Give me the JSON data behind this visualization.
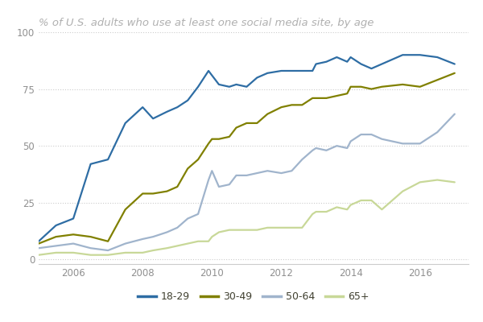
{
  "title": "% of U.S. adults who use at least one social media site, by age",
  "background_color": "#ffffff",
  "grid_color": "#cccccc",
  "ylim": [
    -2,
    100
  ],
  "yticks": [
    0,
    25,
    50,
    75,
    100
  ],
  "xlim": [
    2005.0,
    2017.4
  ],
  "xticks": [
    2006,
    2008,
    2010,
    2012,
    2014,
    2016
  ],
  "series": {
    "18-29": {
      "color": "#2e6da4",
      "x": [
        2005.0,
        2005.5,
        2006.0,
        2006.5,
        2007.0,
        2007.5,
        2008.0,
        2008.3,
        2008.7,
        2009.0,
        2009.3,
        2009.6,
        2009.9,
        2010.0,
        2010.2,
        2010.5,
        2010.7,
        2011.0,
        2011.3,
        2011.6,
        2012.0,
        2012.3,
        2012.6,
        2012.9,
        2013.0,
        2013.3,
        2013.6,
        2013.9,
        2014.0,
        2014.3,
        2014.6,
        2014.9,
        2015.5,
        2016.0,
        2016.5,
        2017.0
      ],
      "y": [
        8,
        15,
        18,
        42,
        44,
        60,
        67,
        62,
        65,
        67,
        70,
        76,
        83,
        81,
        77,
        76,
        77,
        76,
        80,
        82,
        83,
        83,
        83,
        83,
        86,
        87,
        89,
        87,
        89,
        86,
        84,
        86,
        90,
        90,
        89,
        86
      ]
    },
    "30-49": {
      "color": "#808000",
      "x": [
        2005.0,
        2005.5,
        2006.0,
        2006.5,
        2007.0,
        2007.5,
        2008.0,
        2008.3,
        2008.7,
        2009.0,
        2009.3,
        2009.6,
        2009.9,
        2010.0,
        2010.2,
        2010.5,
        2010.7,
        2011.0,
        2011.3,
        2011.6,
        2012.0,
        2012.3,
        2012.6,
        2012.9,
        2013.0,
        2013.3,
        2013.6,
        2013.9,
        2014.0,
        2014.3,
        2014.6,
        2014.9,
        2015.5,
        2016.0,
        2016.5,
        2017.0
      ],
      "y": [
        7,
        10,
        11,
        10,
        8,
        22,
        29,
        29,
        30,
        32,
        40,
        44,
        51,
        53,
        53,
        54,
        58,
        60,
        60,
        64,
        67,
        68,
        68,
        71,
        71,
        71,
        72,
        73,
        76,
        76,
        75,
        76,
        77,
        76,
        79,
        82
      ]
    },
    "50-64": {
      "color": "#a0b4cc",
      "x": [
        2005.0,
        2005.5,
        2006.0,
        2006.5,
        2007.0,
        2007.5,
        2008.0,
        2008.3,
        2008.7,
        2009.0,
        2009.3,
        2009.6,
        2009.9,
        2010.0,
        2010.2,
        2010.5,
        2010.7,
        2011.0,
        2011.3,
        2011.6,
        2012.0,
        2012.3,
        2012.6,
        2012.9,
        2013.0,
        2013.3,
        2013.6,
        2013.9,
        2014.0,
        2014.3,
        2014.6,
        2014.9,
        2015.5,
        2016.0,
        2016.5,
        2017.0
      ],
      "y": [
        5,
        6,
        7,
        5,
        4,
        7,
        9,
        10,
        12,
        14,
        18,
        20,
        35,
        39,
        32,
        33,
        37,
        37,
        38,
        39,
        38,
        39,
        44,
        48,
        49,
        48,
        50,
        49,
        52,
        55,
        55,
        53,
        51,
        51,
        56,
        64
      ]
    },
    "65+": {
      "color": "#c8d898",
      "x": [
        2005.0,
        2005.5,
        2006.0,
        2006.5,
        2007.0,
        2007.5,
        2008.0,
        2008.3,
        2008.7,
        2009.0,
        2009.3,
        2009.6,
        2009.9,
        2010.0,
        2010.2,
        2010.5,
        2010.7,
        2011.0,
        2011.3,
        2011.6,
        2012.0,
        2012.3,
        2012.6,
        2012.9,
        2013.0,
        2013.3,
        2013.6,
        2013.9,
        2014.0,
        2014.3,
        2014.6,
        2014.9,
        2015.5,
        2016.0,
        2016.5,
        2017.0
      ],
      "y": [
        2,
        3,
        3,
        2,
        2,
        3,
        3,
        4,
        5,
        6,
        7,
        8,
        8,
        10,
        12,
        13,
        13,
        13,
        13,
        14,
        14,
        14,
        14,
        20,
        21,
        21,
        23,
        22,
        24,
        26,
        26,
        22,
        30,
        34,
        35,
        34
      ]
    }
  },
  "legend_order": [
    "18-29",
    "30-49",
    "50-64",
    "65+"
  ],
  "title_color": "#b0b0b0",
  "title_fontsize": 9.5,
  "title_style": "italic",
  "tick_color": "#909090",
  "tick_fontsize": 8.5,
  "line_width": 1.6,
  "legend_text_color": "#404030"
}
